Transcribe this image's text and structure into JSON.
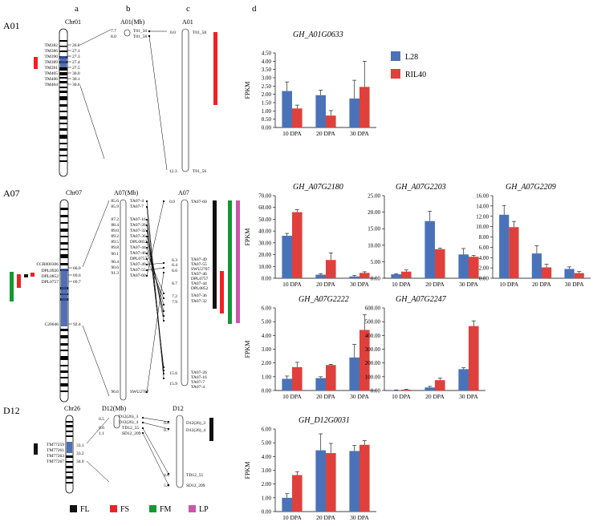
{
  "panel_letters": [
    "a",
    "b",
    "c",
    "d"
  ],
  "group_labels": [
    "A01",
    "A07",
    "D12"
  ],
  "legend": [
    {
      "code": "FL",
      "color": "#111111"
    },
    {
      "code": "FS",
      "color": "#ee2222"
    },
    {
      "code": "FM",
      "color": "#119933"
    },
    {
      "code": "LP",
      "color": "#cc55aa"
    }
  ],
  "A01": {
    "chr_label": "Chr01",
    "markers": [
      "TM382",
      "TM386",
      "TM390",
      "TM389",
      "TM391",
      "TM405",
      "TM406",
      "TM404"
    ],
    "positions": [
      "26.8",
      "27.1",
      "27.3",
      "27.4",
      "27.5",
      "30.0",
      "30.1",
      "30.6"
    ],
    "mb_title": "A01(Mb)",
    "mb_labels": [
      {
        "pos": "7.7",
        "name": "T01_56"
      },
      {
        "pos": "8.0",
        "name": "T01_58"
      }
    ],
    "ref_title": "A01",
    "ref_labels": [
      {
        "pos": "0.0",
        "name": "T01_58"
      },
      {
        "pos": "12.3",
        "name": "T01_56"
      }
    ]
  },
  "A07": {
    "chr_label": "Chr07",
    "markers": [
      "CCR000306",
      "DPL0920",
      "DPL0852",
      "DPL0757",
      "C20046"
    ],
    "positions": [
      "66.0",
      "69.6",
      "69.7",
      "92.4"
    ],
    "mb_title": "A07(Mb)",
    "mb_positions": [
      "85.6",
      "85.9",
      "87.2",
      "88.4",
      "89.0",
      "89.2",
      "89.5",
      "89.8",
      "90.1",
      "90.4",
      "90.6",
      "91.3",
      "96.6"
    ],
    "mb_names": [
      "TA07-4",
      "TA07-7",
      "TA07-16",
      "TA07-26",
      "TA07-32",
      "TA07-36",
      "DPL0852",
      "TA07-44",
      "TA07-46",
      "DPL0757",
      "TA07-49",
      "TA07-55",
      "TA07-60",
      "SWU2707"
    ],
    "ref_title": "A07",
    "ref_top": {
      "pos": "0.0",
      "name": "TA07-60"
    },
    "ref_positions": [
      "6.3",
      "6.4",
      "6.6",
      "6.7",
      "7.2",
      "7.9",
      "15.6",
      "15.9"
    ],
    "ref_names": [
      "TA07-49",
      "TA07-55",
      "SWU2707",
      "TA07-46",
      "DPL0757",
      "TA07-44",
      "DPL0852",
      "TA07-36",
      "TA07-32",
      "TA07-26",
      "TA07-16",
      "TA07-7",
      "TA07-4"
    ]
  },
  "D12": {
    "chr_label": "Chr26",
    "markers": [
      "TM77259",
      "TM77261",
      "TM77263",
      "TM77267"
    ],
    "positions": [
      "33.1",
      "33.2",
      "34.0"
    ],
    "mb_title": "D12(Mb)",
    "mb_positions": [
      "0.5",
      "0.6",
      "1.1"
    ],
    "mb_names": [
      "D12(26)_3",
      "D12(26)_4",
      "TD12_55",
      "SD12_209"
    ],
    "ref_title": "D12",
    "ref_labels": [
      {
        "pos": "0.0",
        "name": "D12(26)_3"
      },
      {
        "pos": "0.7",
        "name": "D12(26)_4"
      },
      {
        "pos": "4.6",
        "name": "TD12_55"
      },
      {
        "pos": "5.6",
        "name": "SD12_209"
      }
    ]
  },
  "series_names": [
    "L28",
    "RIL40"
  ],
  "series_colors": [
    "#4a72b8",
    "#e0403c"
  ],
  "chart_data": [
    {
      "type": "bar",
      "title": "GH_A01G0633",
      "ylabel": "FPKM",
      "categories": [
        "10 DPA",
        "20 DPA",
        "30 DPA"
      ],
      "series": [
        {
          "name": "L28",
          "values": [
            2.2,
            1.95,
            1.75
          ],
          "errors": [
            0.55,
            0.3,
            1.1
          ]
        },
        {
          "name": "RIL40",
          "values": [
            1.15,
            0.72,
            2.45
          ],
          "errors": [
            0.2,
            0.3,
            1.55
          ]
        }
      ],
      "ylim": [
        0,
        4.5
      ],
      "ticks": [
        "0.00",
        "0.50",
        "1.00",
        "1.50",
        "2.00",
        "2.50",
        "3.00",
        "3.50",
        "4.00",
        "4.50"
      ]
    },
    {
      "type": "bar",
      "title": "GH_A07G2180",
      "ylabel": "FPKM",
      "categories": [
        "10 DPA",
        "20 DPA",
        "30 DPA"
      ],
      "series": [
        {
          "name": "L28",
          "values": [
            36,
            3,
            1.5
          ],
          "errors": [
            2,
            0.8,
            0.8
          ]
        },
        {
          "name": "RIL40",
          "values": [
            56,
            15.5,
            4.5
          ],
          "errors": [
            2,
            6,
            1
          ]
        }
      ],
      "ylim": [
        0,
        70
      ],
      "ticks": [
        "0.00",
        "10.00",
        "20.00",
        "30.00",
        "40.00",
        "50.00",
        "60.00",
        "70.00"
      ]
    },
    {
      "type": "bar",
      "title": "GH_A07G2203",
      "ylabel": "",
      "categories": [
        "10 DPA",
        "20 DPA",
        "30 DPA"
      ],
      "series": [
        {
          "name": "L28",
          "values": [
            1.2,
            17.3,
            7.2
          ],
          "errors": [
            0.2,
            3.0,
            1.8
          ]
        },
        {
          "name": "RIL40",
          "values": [
            2.0,
            8.8,
            6.5
          ],
          "errors": [
            0.5,
            0.3,
            0.4
          ]
        }
      ],
      "ylim": [
        0,
        25
      ],
      "ticks": [
        "0.00",
        "5.00",
        "10.00",
        "15.00",
        "20.00",
        "25.00"
      ]
    },
    {
      "type": "bar",
      "title": "GH_A07G2209",
      "ylabel": "",
      "categories": [
        "10 DPA",
        "20 DPA",
        "30 DPA"
      ],
      "series": [
        {
          "name": "L28",
          "values": [
            12.3,
            4.8,
            1.8
          ],
          "errors": [
            1.8,
            1.5,
            0.4
          ]
        },
        {
          "name": "RIL40",
          "values": [
            9.9,
            2.1,
            1.0
          ],
          "errors": [
            1.1,
            0.6,
            0.3
          ]
        }
      ],
      "ylim": [
        0,
        16
      ],
      "ticks": [
        "0.00",
        "2.00",
        "4.00",
        "6.00",
        "8.00",
        "10.00",
        "12.00",
        "14.00",
        "16.00"
      ]
    },
    {
      "type": "bar",
      "title": "GH_A07G2222",
      "ylabel": "FPKM",
      "categories": [
        "10 DPA",
        "20 DPA",
        "30 DPA"
      ],
      "series": [
        {
          "name": "L28",
          "values": [
            0.85,
            0.9,
            2.4
          ],
          "errors": [
            0.2,
            0.1,
            0.95
          ]
        },
        {
          "name": "RIL40",
          "values": [
            1.7,
            1.85,
            4.4
          ],
          "errors": [
            0.35,
            0.05,
            1.1
          ]
        }
      ],
      "ylim": [
        0,
        6
      ],
      "ticks": [
        "0.00",
        "1.00",
        "2.00",
        "3.00",
        "4.00",
        "5.00",
        "6.00"
      ]
    },
    {
      "type": "bar",
      "title": "GH_A07G2247",
      "ylabel": "",
      "categories": [
        "10 DPA",
        "20 DPA",
        "30 DPA"
      ],
      "series": [
        {
          "name": "L28",
          "values": [
            3,
            22,
            155
          ],
          "errors": [
            1,
            8,
            10
          ]
        },
        {
          "name": "RIL40",
          "values": [
            6,
            75,
            468
          ],
          "errors": [
            2,
            15,
            38
          ]
        }
      ],
      "ylim": [
        0,
        600
      ],
      "ticks": [
        "0.00",
        "100.00",
        "200.00",
        "300.00",
        "400.00",
        "500.00",
        "600.00"
      ]
    },
    {
      "type": "bar",
      "title": "GH_D12G0031",
      "ylabel": "FPKM",
      "categories": [
        "10 DPA",
        "20 DPA",
        "30 DPA"
      ],
      "series": [
        {
          "name": "L28",
          "values": [
            1.0,
            4.45,
            4.4
          ],
          "errors": [
            0.3,
            1.2,
            0.4
          ]
        },
        {
          "name": "RIL40",
          "values": [
            2.65,
            4.25,
            4.85
          ],
          "errors": [
            0.25,
            0.7,
            0.3
          ]
        }
      ],
      "ylim": [
        0,
        6
      ],
      "ticks": [
        "0.00",
        "1.00",
        "2.00",
        "3.00",
        "4.00",
        "5.00",
        "6.00"
      ]
    }
  ]
}
